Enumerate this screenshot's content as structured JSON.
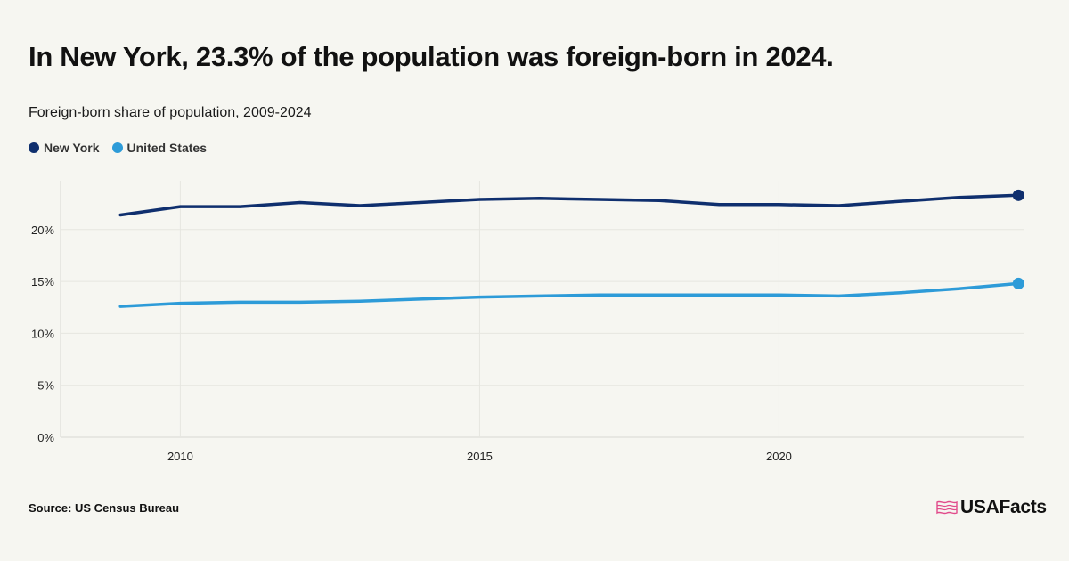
{
  "header": {
    "title": "In New York, 23.3% of the population was foreign-born in 2024.",
    "subtitle": "Foreign-born share of population, 2009-2024"
  },
  "footer": {
    "source": "Source: US Census Bureau",
    "brand": "USAFacts"
  },
  "colors": {
    "background": "#f6f6f1",
    "new_york": "#0f2f6e",
    "united_states": "#2d9bd8",
    "grid": "#e4e4de",
    "brand_flag": "#e14b8b"
  },
  "icons": {
    "brand_logo": "us-flag-outline-icon"
  },
  "chart_data": {
    "type": "line",
    "title": "Foreign-born share of population, 2009-2024",
    "xlabel": "",
    "ylabel": "",
    "x": [
      2009,
      2010,
      2011,
      2012,
      2013,
      2014,
      2015,
      2016,
      2017,
      2018,
      2019,
      2020,
      2021,
      2022,
      2023,
      2024
    ],
    "x_ticks": [
      "2010",
      "2015",
      "2020"
    ],
    "x_tick_values": [
      2010,
      2015,
      2020
    ],
    "xlim": [
      2008,
      2024.1
    ],
    "ylim": [
      0,
      24.7
    ],
    "y_ticks": [
      "0%",
      "5%",
      "10%",
      "15%",
      "20%"
    ],
    "y_tick_values": [
      0,
      5,
      10,
      15,
      20
    ],
    "grid": true,
    "legend_position": "top-left",
    "series": [
      {
        "name": "New York",
        "color": "#0f2f6e",
        "values": [
          21.4,
          22.2,
          22.2,
          22.6,
          22.3,
          22.6,
          22.9,
          23.0,
          22.9,
          22.8,
          22.4,
          22.4,
          22.3,
          22.7,
          23.1,
          23.3
        ]
      },
      {
        "name": "United States",
        "color": "#2d9bd8",
        "values": [
          12.6,
          12.9,
          13.0,
          13.0,
          13.1,
          13.3,
          13.5,
          13.6,
          13.7,
          13.7,
          13.7,
          13.7,
          13.6,
          13.9,
          14.3,
          14.8
        ]
      }
    ]
  }
}
